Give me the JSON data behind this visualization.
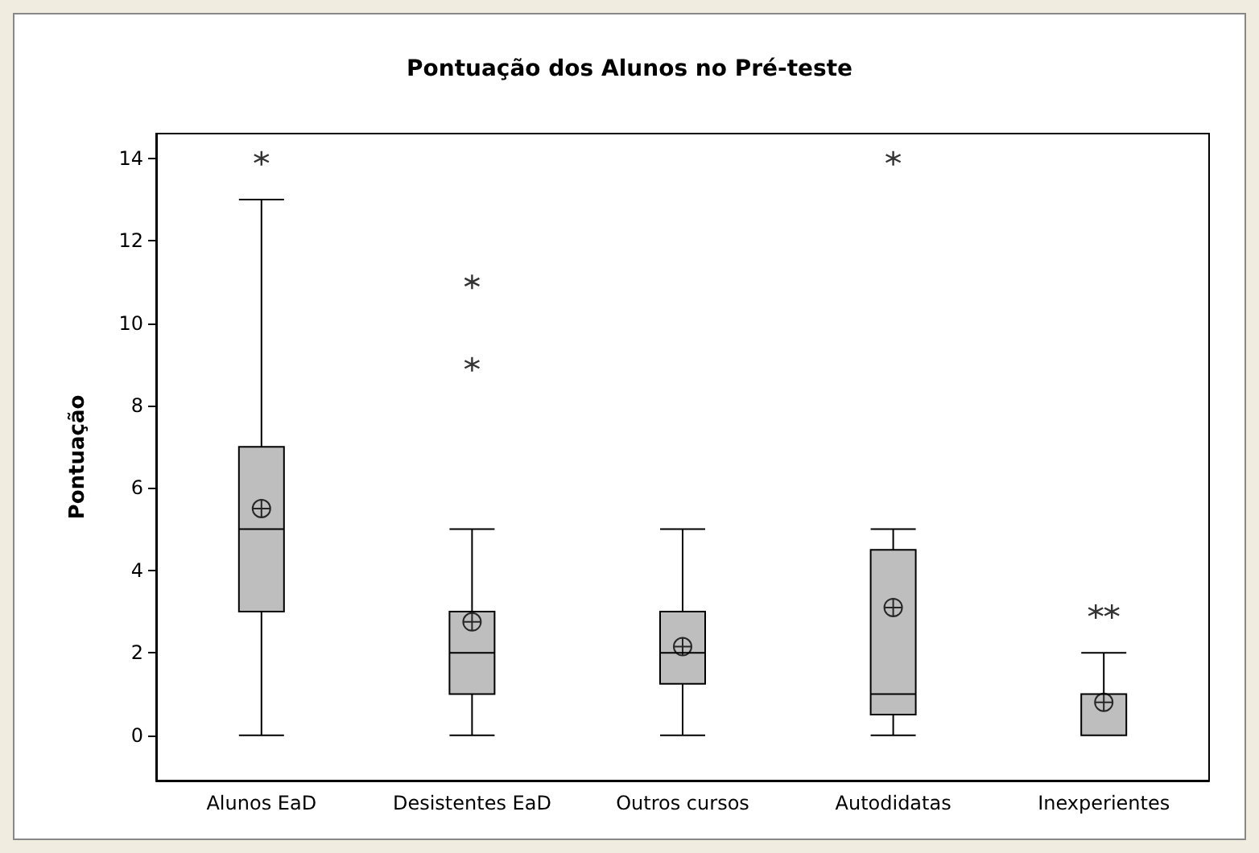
{
  "chart_data": {
    "type": "box",
    "title": "Pontuação dos Alunos no Pré-teste",
    "ylabel": "Pontuação",
    "categories": [
      "Alunos EaD",
      "Desistentes EaD",
      "Outros cursos",
      "Autodidatas",
      "Inexperientes"
    ],
    "color": "#bebebe",
    "boxes": [
      {
        "low": 0,
        "q1": 3,
        "median": 5,
        "q3": 7,
        "high": 13,
        "mean": 5.5,
        "outliers": [
          14
        ]
      },
      {
        "low": 0,
        "q1": 1,
        "median": 2,
        "q3": 3,
        "high": 5,
        "mean": 2.75,
        "outliers": [
          9,
          11
        ]
      },
      {
        "low": 0,
        "q1": 1.25,
        "median": 2,
        "q3": 3,
        "high": 5,
        "mean": 2.15
      },
      {
        "low": 0,
        "q1": 0.5,
        "median": 1,
        "q3": 4.5,
        "high": 5,
        "mean": 3.1,
        "outliers": [
          14
        ]
      },
      {
        "low": 0,
        "q1": 0,
        "median": 0,
        "q3": 1,
        "high": 2,
        "mean": 0.8,
        "outliers": [
          3,
          3
        ]
      }
    ],
    "ylim": [
      -1.1,
      14.6
    ],
    "yticks": [
      0,
      2,
      4,
      6,
      8,
      10,
      12,
      14
    ]
  }
}
